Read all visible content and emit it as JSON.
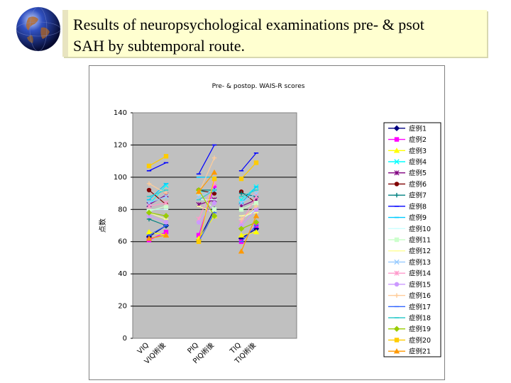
{
  "slide": {
    "title_line1": "Results of neuropsychological examinations pre- & psot",
    "title_line2": "SAH by subtemporal route."
  },
  "colors": {
    "plot_bg": "#c0c0c0",
    "title_bg": "#ffffd0"
  },
  "chart_data": {
    "type": "line",
    "title": "Pre- & postop. WAIS-R scores",
    "ylabel": "点数",
    "ylim": [
      0,
      140
    ],
    "yticks": [
      0,
      20,
      40,
      60,
      80,
      100,
      120,
      140
    ],
    "categories": [
      "VIQ",
      "VIQ術後",
      "PIQ",
      "PIQ術後",
      "TIQ",
      "TIQ術後"
    ],
    "grid": true,
    "legend": "right",
    "series": [
      {
        "name": "症例1",
        "color": "#000080",
        "marker": "diamond",
        "values": [
          63,
          70,
          61,
          80,
          62,
          68
        ]
      },
      {
        "name": "症例2",
        "color": "#ff00ff",
        "marker": "square",
        "values": [
          61,
          66,
          64,
          94,
          60,
          70
        ]
      },
      {
        "name": "症例3",
        "color": "#ffff00",
        "marker": "triangle",
        "values": [
          66,
          64,
          62,
          76,
          64,
          66
        ]
      },
      {
        "name": "症例4",
        "color": "#00ffff",
        "marker": "x",
        "values": [
          83,
          95,
          91,
          91,
          86,
          94
        ]
      },
      {
        "name": "症例5",
        "color": "#800080",
        "marker": "star",
        "values": [
          83,
          89,
          83,
          86,
          82,
          86
        ]
      },
      {
        "name": "症例6",
        "color": "#800000",
        "marker": "circle",
        "values": [
          92,
          83,
          92,
          90,
          91,
          84
        ]
      },
      {
        "name": "症例7",
        "color": "#008080",
        "marker": "plus",
        "values": [
          74,
          70,
          92,
          92,
          90,
          88
        ]
      },
      {
        "name": "症例8",
        "color": "#0000ff",
        "marker": "dash",
        "values": [
          104,
          109,
          102,
          120,
          104,
          115
        ]
      },
      {
        "name": "症例9",
        "color": "#00ccff",
        "marker": "dash",
        "values": [
          86,
          96,
          100,
          100,
          84,
          94
        ]
      },
      {
        "name": "症例10",
        "color": "#ccffff",
        "marker": "dash",
        "values": [
          80,
          80,
          86,
          86,
          74,
          80
        ]
      },
      {
        "name": "症例11",
        "color": "#ccffcc",
        "marker": "square",
        "values": [
          79,
          82,
          90,
          80,
          80,
          84
        ]
      },
      {
        "name": "症例12",
        "color": "#ffff99",
        "marker": "dash",
        "values": [
          78,
          74,
          82,
          78,
          76,
          78
        ]
      },
      {
        "name": "症例13",
        "color": "#99ccff",
        "marker": "x",
        "values": [
          84,
          88,
          88,
          92,
          84,
          90
        ]
      },
      {
        "name": "症例14",
        "color": "#ff99cc",
        "marker": "star",
        "values": [
          82,
          84,
          74,
          96,
          72,
          88
        ]
      },
      {
        "name": "症例15",
        "color": "#cc99ff",
        "marker": "circle",
        "values": [
          76,
          72,
          72,
          84,
          70,
          80
        ]
      },
      {
        "name": "症例16",
        "color": "#ffcc99",
        "marker": "plus",
        "values": [
          96,
          90,
          90,
          112,
          74,
          82
        ]
      },
      {
        "name": "症例17",
        "color": "#3366ff",
        "marker": "dash",
        "values": [
          64,
          70,
          60,
          78,
          60,
          70
        ]
      },
      {
        "name": "症例18",
        "color": "#33cccc",
        "marker": "dash",
        "values": [
          88,
          92,
          86,
          92,
          88,
          92
        ]
      },
      {
        "name": "症例19",
        "color": "#99cc00",
        "marker": "diamond",
        "values": [
          78,
          76,
          92,
          76,
          68,
          72
        ]
      },
      {
        "name": "症例20",
        "color": "#ffcc00",
        "marker": "square",
        "values": [
          107,
          113,
          60,
          99,
          99,
          109
        ]
      },
      {
        "name": "症例21",
        "color": "#ff9900",
        "marker": "triangle",
        "values": [
          62,
          64,
          91,
          103,
          54,
          76
        ]
      }
    ]
  }
}
